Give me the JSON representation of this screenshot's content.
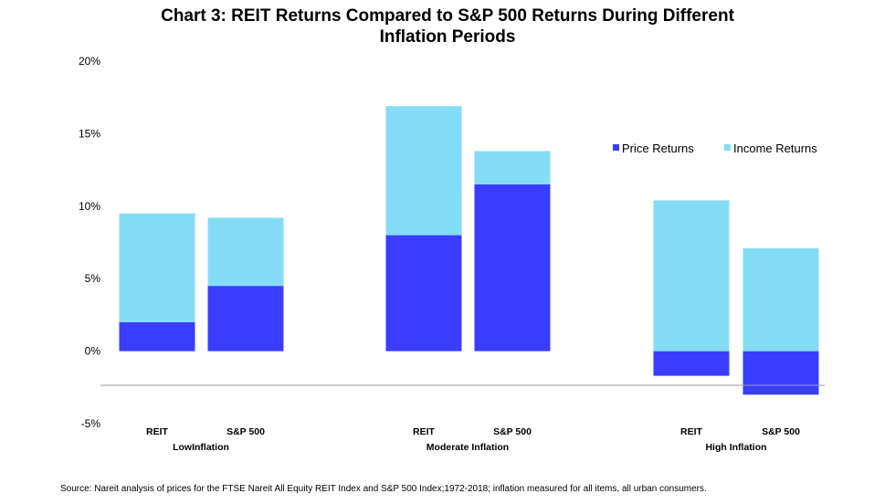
{
  "chart_data": {
    "type": "bar",
    "stacked": true,
    "title_lines": [
      "Chart 3: REIT Returns Compared to S&P 500 Returns During Different",
      "Inflation Periods"
    ],
    "groups": [
      "Low Inflation",
      "Moderate Inflation",
      "High Inflation"
    ],
    "group_label_texts": [
      "LowInflation",
      "Moderate Inflation",
      "High Inflation"
    ],
    "categories": [
      "REIT",
      "S&P 500",
      "REIT",
      "S&P 500",
      "REIT",
      "S&P 500"
    ],
    "series": [
      {
        "name": "Price Returns",
        "color": "#3a3dff",
        "values": [
          2.0,
          4.5,
          8.0,
          11.5,
          -1.7,
          -3.0
        ]
      },
      {
        "name": "Income Returns",
        "color": "#84dcf6",
        "values": [
          7.5,
          4.7,
          8.9,
          2.3,
          10.4,
          7.1
        ]
      }
    ],
    "ylim": [
      -5,
      20
    ],
    "yticks": [
      -5,
      0,
      5,
      10,
      15,
      20
    ],
    "ytick_labels": [
      "-5%",
      "0%",
      "5%",
      "10%",
      "15%",
      "20%"
    ],
    "xlabel": "",
    "ylabel": "",
    "grid": false,
    "legend_position": "upper-right",
    "source": "Source: Nareit analysis of prices for the FTSE  Nareit  All Equity  REIT  Index and S&P  500 Index;1972-2018; inflation measured for all items,  all urban consumers."
  }
}
